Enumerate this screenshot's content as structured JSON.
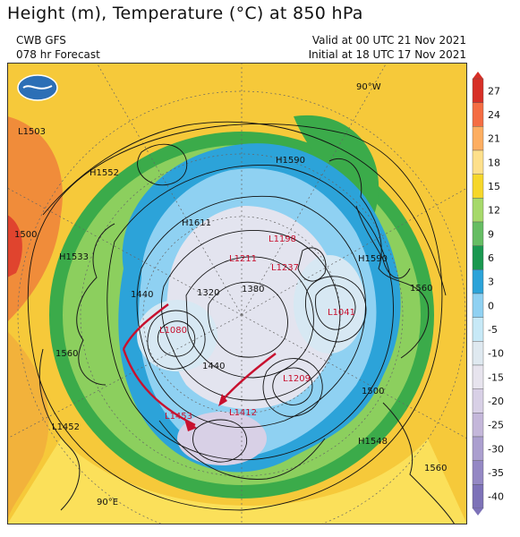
{
  "header": {
    "title": "Height (m), Temperature (°C) at 850 hPa",
    "model": "CWB GFS",
    "forecast": "078 hr Forecast",
    "valid": "Valid at 00 UTC 21 Nov 2021",
    "initial": "Initial at 18 UTC 17 Nov 2021"
  },
  "colorbar": {
    "labels": [
      "27",
      "24",
      "21",
      "18",
      "15",
      "12",
      "9",
      "6",
      "3",
      "0",
      "-5",
      "-10",
      "-15",
      "-20",
      "-25",
      "-30",
      "-35",
      "-40"
    ],
    "colors": [
      "#d73027",
      "#f46d43",
      "#fdae61",
      "#fee08b",
      "#f6d72a",
      "#a6d96a",
      "#66bd63",
      "#1a9850",
      "#2ca3d9",
      "#8fd1f2",
      "#c7e9f7",
      "#dfe9f0",
      "#e7e4ee",
      "#d8d0e6",
      "#c4b7da",
      "#ab9fcf",
      "#9488c4",
      "#7d72b8"
    ]
  },
  "map": {
    "contour_labels": [
      "1500",
      "1560",
      "1440",
      "1320",
      "1380",
      "1440",
      "1560",
      "1500",
      "1560"
    ],
    "highs": [
      "H1552",
      "H1533",
      "H1611",
      "H1590",
      "H1590",
      "H1548"
    ],
    "lows": [
      "L1503",
      "L1211",
      "L1237",
      "L1198",
      "L1041",
      "L1080",
      "L1209",
      "L1412",
      "L1452",
      "L1453"
    ],
    "other": [
      "90°W",
      "90°E"
    ]
  }
}
